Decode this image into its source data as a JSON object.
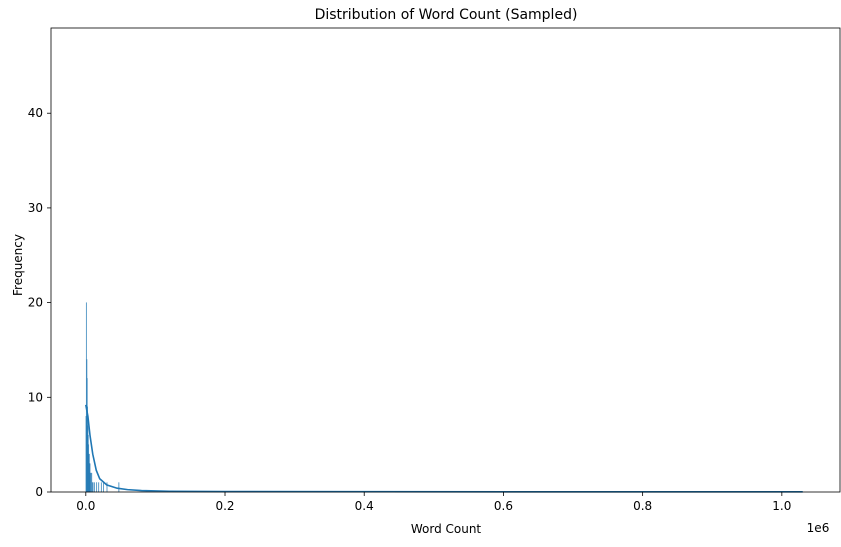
{
  "chart_data": {
    "type": "histogram",
    "title": "Distribution of Word Count (Sampled)",
    "xlabel": "Word Count",
    "ylabel": "Frequency",
    "x_offset_label": "1e6",
    "xlim": [
      -50000,
      1085000
    ],
    "ylim": [
      0,
      49
    ],
    "x_ticks": [
      0.0,
      0.2,
      0.4,
      0.6,
      0.8,
      1.0
    ],
    "x_tick_labels": [
      "0.0",
      "0.2",
      "0.4",
      "0.6",
      "0.8",
      "1.0"
    ],
    "y_ticks": [
      0,
      10,
      20,
      30,
      40
    ],
    "y_tick_labels": [
      "0",
      "10",
      "20",
      "30",
      "40"
    ],
    "bar_color": "#1f77b4",
    "line_color": "#1f77b4",
    "grid": false,
    "bins": [
      {
        "x": 0,
        "y": 8
      },
      {
        "x": 500,
        "y": 20
      },
      {
        "x": 1000,
        "y": 14
      },
      {
        "x": 1500,
        "y": 12
      },
      {
        "x": 2000,
        "y": 9
      },
      {
        "x": 2500,
        "y": 7
      },
      {
        "x": 3000,
        "y": 6
      },
      {
        "x": 3500,
        "y": 5
      },
      {
        "x": 4000,
        "y": 4
      },
      {
        "x": 4500,
        "y": 4
      },
      {
        "x": 5000,
        "y": 3
      },
      {
        "x": 5500,
        "y": 3
      },
      {
        "x": 6000,
        "y": 2
      },
      {
        "x": 7000,
        "y": 2
      },
      {
        "x": 8000,
        "y": 2
      },
      {
        "x": 9000,
        "y": 1
      },
      {
        "x": 10000,
        "y": 1
      },
      {
        "x": 12000,
        "y": 1
      },
      {
        "x": 15000,
        "y": 1
      },
      {
        "x": 18000,
        "y": 1
      },
      {
        "x": 22000,
        "y": 1
      },
      {
        "x": 25000,
        "y": 1
      },
      {
        "x": 30000,
        "y": 1
      },
      {
        "x": 47000,
        "y": 1
      }
    ],
    "kde": [
      {
        "x": 0,
        "y": 9.2
      },
      {
        "x": 3000,
        "y": 8.0
      },
      {
        "x": 6000,
        "y": 6.0
      },
      {
        "x": 10000,
        "y": 4.0
      },
      {
        "x": 15000,
        "y": 2.3
      },
      {
        "x": 20000,
        "y": 1.4
      },
      {
        "x": 30000,
        "y": 0.75
      },
      {
        "x": 45000,
        "y": 0.4
      },
      {
        "x": 60000,
        "y": 0.25
      },
      {
        "x": 80000,
        "y": 0.15
      },
      {
        "x": 120000,
        "y": 0.08
      },
      {
        "x": 200000,
        "y": 0.05
      },
      {
        "x": 400000,
        "y": 0.03
      },
      {
        "x": 700000,
        "y": 0.02
      },
      {
        "x": 1030000,
        "y": 0.02
      }
    ]
  }
}
